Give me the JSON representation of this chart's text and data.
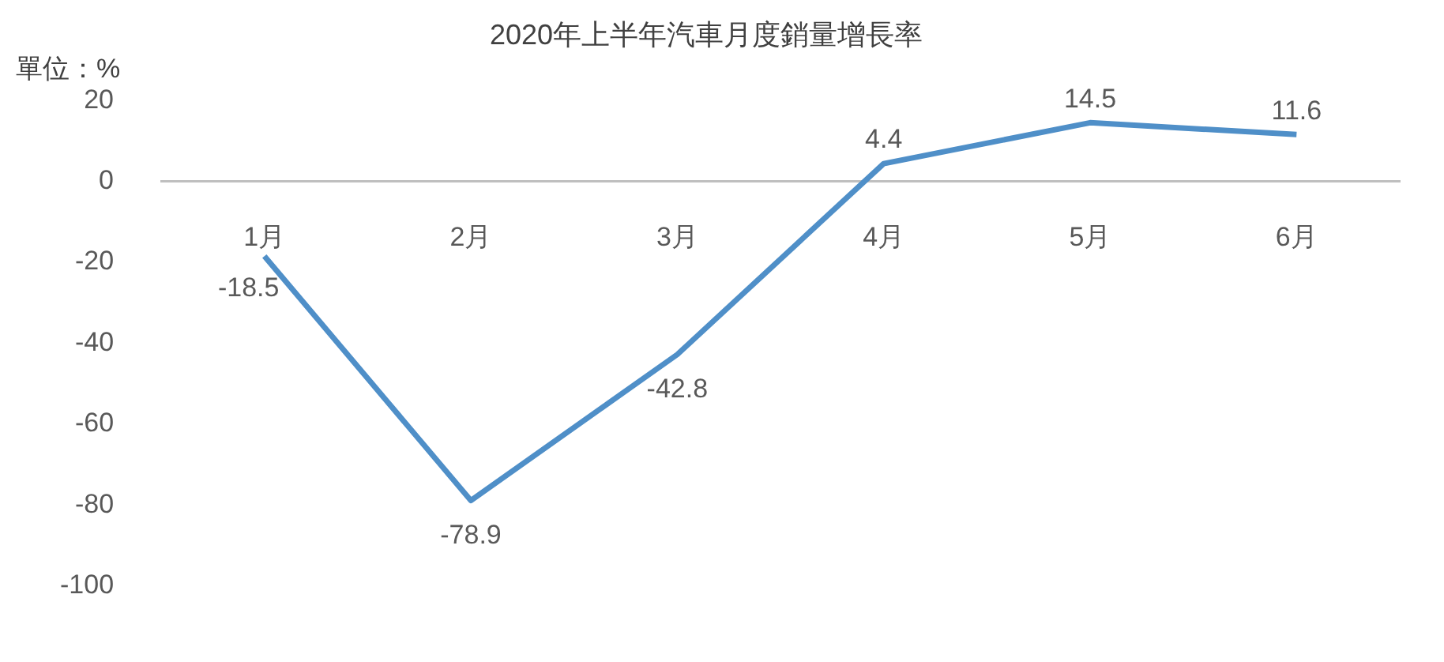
{
  "chart_data": {
    "type": "line",
    "title": "2020年上半年汽車月度銷量增長率",
    "ylabel": "單位：%",
    "categories": [
      "1月",
      "2月",
      "3月",
      "4月",
      "5月",
      "6月"
    ],
    "series": [
      {
        "color": "#4f8fc8",
        "values": [
          -18.5,
          -78.9,
          -42.8,
          4.4,
          14.5,
          11.6
        ]
      }
    ],
    "ylim": [
      -100,
      20
    ],
    "yticks": [
      -100,
      -80,
      -60,
      -40,
      -20,
      0,
      20
    ],
    "grid": false,
    "legend": false,
    "data_labels": true,
    "marker": "none",
    "line_style": "solid"
  }
}
